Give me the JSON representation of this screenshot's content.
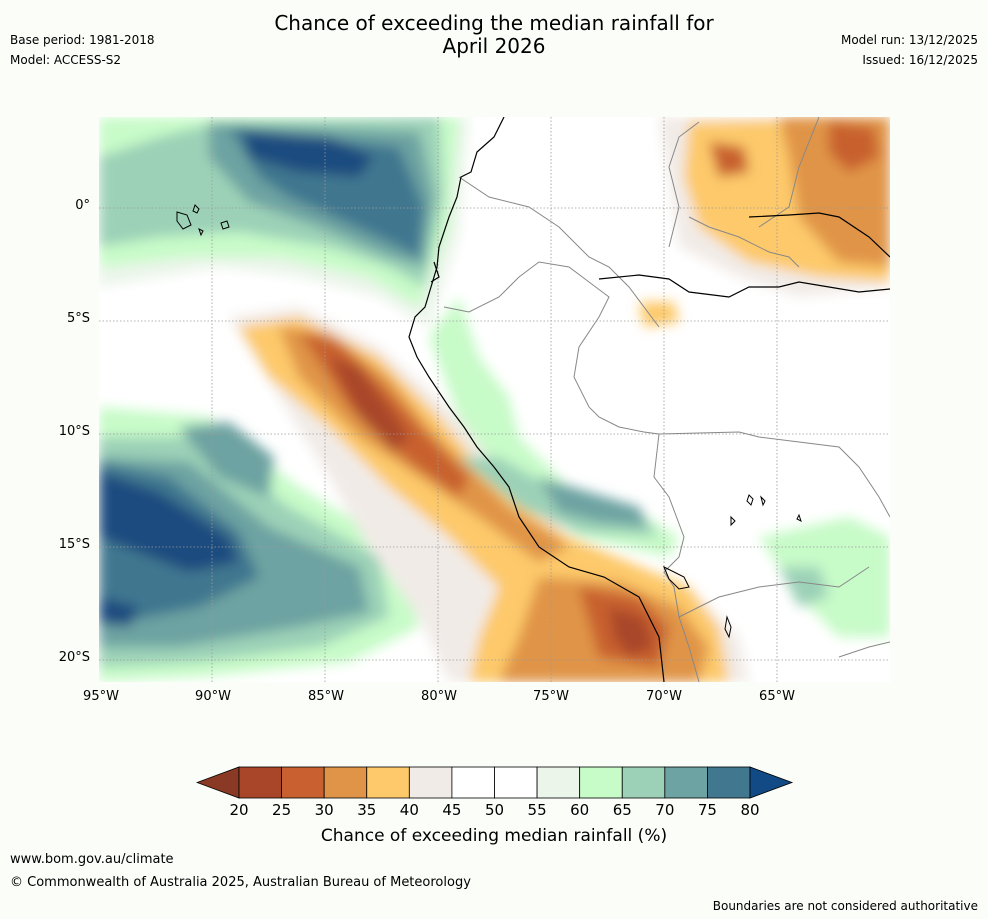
{
  "header": {
    "title_line1": "Chance of exceeding the median rainfall for",
    "title_line2": "April 2026",
    "base_period": "Base period: 1981-2018",
    "model": "Model: ACCESS-S2",
    "model_run": "Model run: 13/12/2025",
    "issued": "Issued: 16/12/2025"
  },
  "map": {
    "lat_labels": [
      "0°",
      "5°S",
      "10°S",
      "15°S",
      "20°S"
    ],
    "lon_labels": [
      "95°W",
      "90°W",
      "85°W",
      "80°W",
      "75°W",
      "70°W",
      "65°W"
    ],
    "land_outline_color": "#000000",
    "border_color": "#888888"
  },
  "colorbar": {
    "ticks": [
      "20",
      "25",
      "30",
      "35",
      "40",
      "45",
      "50",
      "55",
      "60",
      "65",
      "70",
      "75",
      "80"
    ],
    "colors": [
      "#a9462a",
      "#c8602f",
      "#e09447",
      "#fdc96b",
      "#f1ebe7",
      "#ffffff",
      "#ffffff",
      "#ebf5ea",
      "#c7fbc8",
      "#9cd1b7",
      "#6da3a2",
      "#41778f",
      "#1b4b7f"
    ],
    "under_color": "#8a3a24",
    "over_color": "#124a85",
    "caption": "Chance of exceeding median rainfall (%)"
  },
  "footer": {
    "website": "www.bom.gov.au/climate",
    "copyright": "© Commonwealth of Australia 2025, Australian Bureau of Meteorology",
    "disclaimer": "Boundaries are not considered authoritative"
  }
}
